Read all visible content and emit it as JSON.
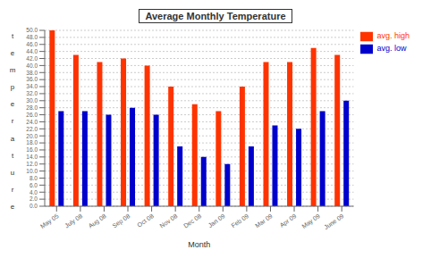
{
  "chart_data": {
    "type": "bar",
    "title": "Average Monthly Temperature",
    "xlabel": "Month",
    "ylabel": "temperature",
    "categories": [
      "May 05",
      "July 08",
      "Aug 08",
      "Sep 08",
      "Oct 08",
      "Nov 08",
      "Dec 08",
      "Jan 09",
      "Feb 09",
      "Mar 09",
      "Apr 09",
      "May 09",
      "June 09"
    ],
    "series": [
      {
        "name": "avg. high",
        "color": "#FF3300",
        "values": [
          50,
          43,
          41,
          42,
          40,
          34,
          29,
          27,
          34,
          41,
          41,
          45,
          43
        ]
      },
      {
        "name": "avg. low",
        "color": "#0000CC",
        "values": [
          27,
          27,
          26,
          28,
          26,
          17,
          14,
          12,
          17,
          23,
          22,
          27,
          30
        ]
      }
    ],
    "ylim": [
      0,
      50
    ],
    "yticks": [
      {
        "value": 0,
        "label": "0.0"
      },
      {
        "value": 2,
        "label": "2.0"
      },
      {
        "value": 4,
        "label": "4.0"
      },
      {
        "value": 6,
        "label": "6.0"
      },
      {
        "value": 8,
        "label": "8.0"
      },
      {
        "value": 10,
        "label": "10.0"
      },
      {
        "value": 12,
        "label": "12.0"
      },
      {
        "value": 14,
        "label": "14.0"
      },
      {
        "value": 16,
        "label": "16.0"
      },
      {
        "value": 18,
        "label": "18.0"
      },
      {
        "value": 20,
        "label": "20.0"
      },
      {
        "value": 22,
        "label": "22.0"
      },
      {
        "value": 24,
        "label": "24.0"
      },
      {
        "value": 26,
        "label": "26.0"
      },
      {
        "value": 28,
        "label": "28.0"
      },
      {
        "value": 30,
        "label": "30.0"
      },
      {
        "value": 32,
        "label": "32.0"
      },
      {
        "value": 34,
        "label": "34.0"
      },
      {
        "value": 36,
        "label": "36.0"
      },
      {
        "value": 38,
        "label": "38.0"
      },
      {
        "value": 40,
        "label": "40.0"
      },
      {
        "value": 42,
        "label": "42.0"
      },
      {
        "value": 44,
        "label": "44.0"
      },
      {
        "value": 46,
        "label": "46.0"
      },
      {
        "value": 48,
        "label": "48.0"
      },
      {
        "value": 50,
        "label": "50.0"
      }
    ],
    "grid": true,
    "legend": "right"
  }
}
